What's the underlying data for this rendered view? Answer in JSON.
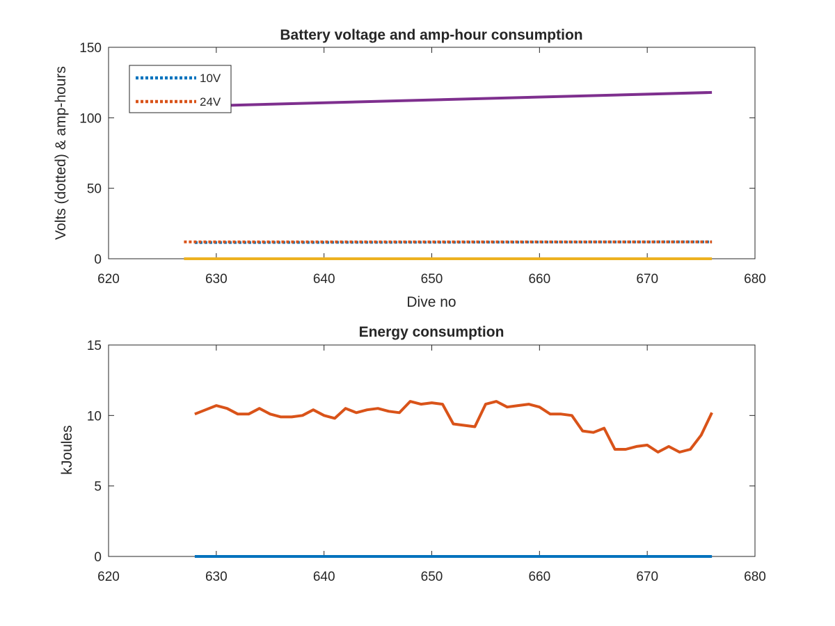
{
  "chart_data": [
    {
      "type": "line",
      "title": "Battery voltage and amp-hour consumption",
      "xlabel": "Dive no",
      "ylabel": "Volts (dotted) & amp-hours",
      "xlim": [
        620,
        680
      ],
      "ylim": [
        0,
        150
      ],
      "xticks": [
        "620",
        "630",
        "640",
        "650",
        "660",
        "670",
        "680"
      ],
      "yticks": [
        "0",
        "50",
        "100",
        "150"
      ],
      "legend": {
        "placement": "top-left",
        "entries": [
          "10V",
          "24V"
        ]
      },
      "series": [
        {
          "name": "10V",
          "style": "dotted",
          "color": "#0072BD",
          "x": [
            628,
            676
          ],
          "y": [
            11.5,
            12.0
          ]
        },
        {
          "name": "24V",
          "style": "dotted",
          "color": "#D95319",
          "x": [
            627,
            676
          ],
          "y": [
            12.0,
            12.0
          ]
        },
        {
          "style": "solid",
          "color": "#7E2F8E",
          "x": [
            627,
            676
          ],
          "y": [
            108,
            118
          ]
        },
        {
          "style": "solid",
          "color": "#EDB120",
          "x": [
            627,
            676
          ],
          "y": [
            0,
            0
          ]
        }
      ]
    },
    {
      "type": "line",
      "title": "Energy consumption",
      "xlabel": "",
      "ylabel": "kJoules",
      "xlim": [
        620,
        680
      ],
      "ylim": [
        0,
        15
      ],
      "xticks": [
        "620",
        "630",
        "640",
        "650",
        "660",
        "670",
        "680"
      ],
      "yticks": [
        "0",
        "5",
        "10",
        "15"
      ],
      "series": [
        {
          "style": "solid",
          "color": "#0072BD",
          "x": [
            628,
            676
          ],
          "y": [
            0,
            0
          ]
        },
        {
          "style": "solid",
          "color": "#D95319",
          "x": [
            628,
            629,
            630,
            631,
            632,
            633,
            634,
            635,
            636,
            637,
            638,
            639,
            640,
            641,
            642,
            643,
            644,
            645,
            646,
            647,
            648,
            649,
            650,
            651,
            652,
            653,
            654,
            655,
            656,
            657,
            658,
            659,
            660,
            661,
            662,
            663,
            664,
            665,
            666,
            667,
            668,
            669,
            670,
            671,
            672,
            673,
            674,
            675,
            676
          ],
          "y": [
            10.1,
            10.4,
            10.7,
            10.5,
            10.1,
            10.1,
            10.5,
            10.1,
            9.9,
            9.9,
            10.0,
            10.4,
            10.0,
            9.8,
            10.5,
            10.2,
            10.4,
            10.5,
            10.3,
            10.2,
            11.0,
            10.8,
            10.9,
            10.8,
            9.4,
            9.3,
            9.2,
            10.8,
            11.0,
            10.6,
            10.7,
            10.8,
            10.6,
            10.1,
            10.1,
            10.0,
            8.9,
            8.8,
            9.1,
            7.6,
            7.6,
            7.8,
            7.9,
            7.4,
            7.8,
            7.4,
            7.6,
            8.6,
            10.2
          ]
        }
      ]
    }
  ]
}
